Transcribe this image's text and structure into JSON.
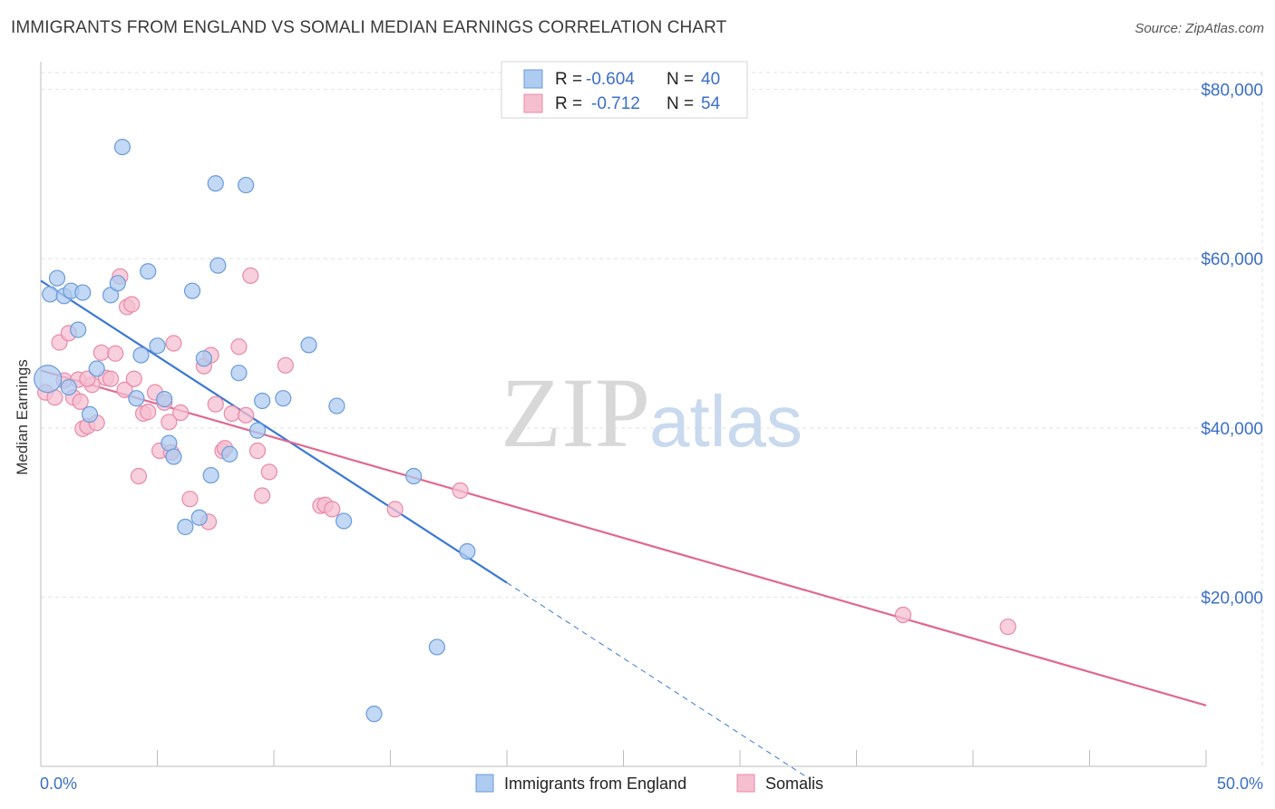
{
  "title": "IMMIGRANTS FROM ENGLAND VS SOMALI MEDIAN EARNINGS CORRELATION CHART",
  "source": "Source: ZipAtlas.com",
  "watermark": {
    "zip": "ZIP",
    "atlas": "atlas"
  },
  "legend": {
    "rows": [
      {
        "r_label": "R =",
        "r_value": "-0.604",
        "n_label": "N =",
        "n_value": "40"
      },
      {
        "r_label": "R =",
        "r_value": "-0.712",
        "n_label": "N =",
        "n_value": "54"
      }
    ]
  },
  "bottom_legend": {
    "items": [
      "Immigrants from England",
      "Somalis"
    ]
  },
  "colors": {
    "blue_fill": "#aecbf0",
    "blue_stroke": "#6b9bd8",
    "blue_line": "#3a78d4",
    "pink_fill": "#f6bfd0",
    "pink_stroke": "#e88aa8",
    "pink_line": "#e06890",
    "grid": "#e2e2e2",
    "axis_text": "#3b6fc6"
  },
  "chart_data": {
    "type": "scatter",
    "title": "IMMIGRANTS FROM ENGLAND VS SOMALI MEDIAN EARNINGS CORRELATION CHART",
    "xlabel": "",
    "ylabel": "Median Earnings",
    "xlim": [
      0,
      50
    ],
    "ylim": [
      0,
      82000
    ],
    "x_tick_labels": [
      "0.0%",
      "50.0%"
    ],
    "y_ticks": [
      20000,
      40000,
      60000,
      80000
    ],
    "y_tick_labels": [
      "$20,000",
      "$40,000",
      "$60,000",
      "$80,000"
    ],
    "grid": true,
    "series": [
      {
        "name": "Immigrants from England",
        "color": "#6b9bd8",
        "points": [
          [
            0.3,
            45800
          ],
          [
            0.4,
            55800
          ],
          [
            0.7,
            57700
          ],
          [
            1.0,
            55600
          ],
          [
            1.3,
            56200
          ],
          [
            1.6,
            51600
          ],
          [
            1.8,
            56000
          ],
          [
            2.1,
            41600
          ],
          [
            2.4,
            47000
          ],
          [
            3.0,
            55700
          ],
          [
            3.3,
            57100
          ],
          [
            3.5,
            73200
          ],
          [
            4.1,
            43500
          ],
          [
            4.3,
            48600
          ],
          [
            4.6,
            58500
          ],
          [
            5.0,
            49700
          ],
          [
            5.3,
            43400
          ],
          [
            5.5,
            38200
          ],
          [
            5.7,
            36600
          ],
          [
            6.2,
            28300
          ],
          [
            6.5,
            56200
          ],
          [
            6.8,
            29400
          ],
          [
            7.0,
            48200
          ],
          [
            7.3,
            34400
          ],
          [
            7.5,
            68900
          ],
          [
            7.6,
            59200
          ],
          [
            8.1,
            36900
          ],
          [
            8.5,
            46500
          ],
          [
            8.8,
            68700
          ],
          [
            9.3,
            39700
          ],
          [
            9.5,
            43200
          ],
          [
            10.4,
            43500
          ],
          [
            11.5,
            49800
          ],
          [
            12.7,
            42600
          ],
          [
            13.0,
            29000
          ],
          [
            16.0,
            34300
          ],
          [
            17.0,
            14100
          ],
          [
            18.3,
            25400
          ],
          [
            14.3,
            6200
          ],
          [
            1.2,
            44800
          ]
        ],
        "trend": {
          "x": [
            0,
            20
          ],
          "y": [
            57400,
            21700
          ],
          "dashed_to": [
            33,
            -1500
          ]
        }
      },
      {
        "name": "Somalis",
        "color": "#e88aa8",
        "points": [
          [
            0.2,
            44200
          ],
          [
            0.6,
            43600
          ],
          [
            0.8,
            50100
          ],
          [
            1.0,
            45600
          ],
          [
            1.2,
            51200
          ],
          [
            1.4,
            43600
          ],
          [
            1.6,
            45700
          ],
          [
            1.7,
            43100
          ],
          [
            1.8,
            39900
          ],
          [
            2.0,
            40200
          ],
          [
            2.2,
            45100
          ],
          [
            2.4,
            40600
          ],
          [
            2.6,
            48900
          ],
          [
            2.8,
            45900
          ],
          [
            3.0,
            45800
          ],
          [
            3.2,
            48800
          ],
          [
            3.4,
            57900
          ],
          [
            3.6,
            44500
          ],
          [
            3.7,
            54300
          ],
          [
            3.9,
            54600
          ],
          [
            4.0,
            45800
          ],
          [
            4.2,
            34300
          ],
          [
            4.4,
            41700
          ],
          [
            4.6,
            41900
          ],
          [
            4.9,
            44200
          ],
          [
            5.1,
            37300
          ],
          [
            5.3,
            43000
          ],
          [
            5.5,
            40700
          ],
          [
            5.6,
            37100
          ],
          [
            5.7,
            50000
          ],
          [
            6.0,
            41800
          ],
          [
            6.4,
            31600
          ],
          [
            7.0,
            47300
          ],
          [
            7.2,
            28900
          ],
          [
            7.3,
            48600
          ],
          [
            7.5,
            42800
          ],
          [
            7.8,
            37300
          ],
          [
            7.9,
            37600
          ],
          [
            8.2,
            41700
          ],
          [
            8.5,
            49600
          ],
          [
            8.8,
            41500
          ],
          [
            9.0,
            58000
          ],
          [
            9.3,
            37300
          ],
          [
            9.5,
            32000
          ],
          [
            9.8,
            34800
          ],
          [
            10.5,
            47400
          ],
          [
            12.0,
            30800
          ],
          [
            12.2,
            30900
          ],
          [
            12.5,
            30400
          ],
          [
            15.2,
            30400
          ],
          [
            18.0,
            32600
          ],
          [
            37.0,
            17900
          ],
          [
            41.5,
            16500
          ],
          [
            2.0,
            45800
          ]
        ],
        "trend": {
          "x": [
            0,
            50
          ],
          "y": [
            46800,
            7200
          ]
        }
      }
    ]
  }
}
